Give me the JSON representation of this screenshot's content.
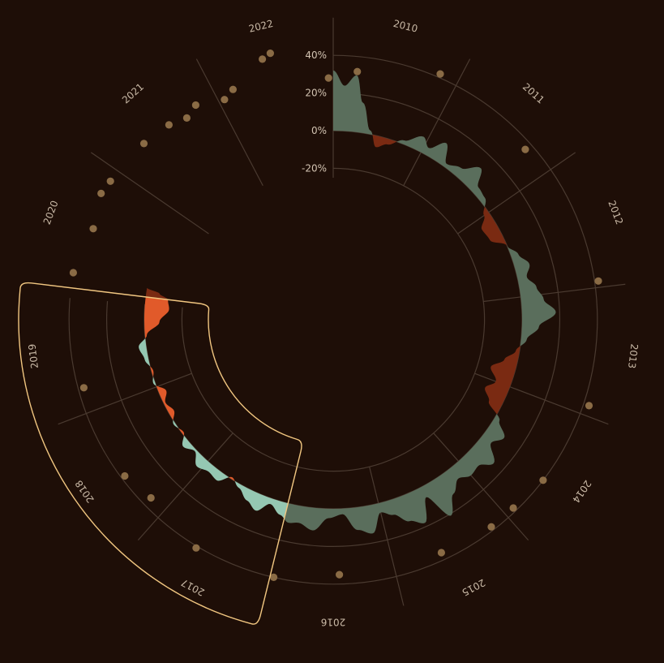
{
  "chart_data": {
    "type": "area",
    "layout": "radial",
    "title": "",
    "xlabel": "",
    "ylabel": "",
    "ylim": [
      -20,
      40
    ],
    "y_ticks": [
      "40%",
      "20%",
      "0%",
      "-20%"
    ],
    "x_years": [
      "2010",
      "2011",
      "2012",
      "2013",
      "2014",
      "2015",
      "2016",
      "2017",
      "2018",
      "2019",
      "2020",
      "2021",
      "2022"
    ],
    "highlight_range": [
      "2017",
      "2019"
    ],
    "colors": {
      "background": "#1e0e07",
      "positive": "#5a6e5c",
      "negative": "#7a2a12",
      "positive_highlight": "#95c7b2",
      "negative_highlight": "#e15a2a",
      "dots": "#8a6b45",
      "highlight_outline": "#f1c680"
    },
    "series": [
      {
        "values": [
          [
            2010.0,
            32
          ],
          [
            2010.1,
            24
          ],
          [
            2010.2,
            30
          ],
          [
            2010.28,
            16
          ],
          [
            2010.4,
            2
          ],
          [
            2010.5,
            -6
          ],
          [
            2010.62,
            -3
          ],
          [
            2010.78,
            2
          ],
          [
            2010.95,
            8
          ],
          [
            2011.05,
            4
          ],
          [
            2011.18,
            11
          ],
          [
            2011.3,
            2
          ],
          [
            2011.45,
            5
          ],
          [
            2011.6,
            12
          ],
          [
            2011.72,
            4
          ],
          [
            2011.85,
            3
          ],
          [
            2012.0,
            -3
          ],
          [
            2012.12,
            -8
          ],
          [
            2012.28,
            -7
          ],
          [
            2012.42,
            0
          ],
          [
            2012.55,
            4
          ],
          [
            2012.68,
            8
          ],
          [
            2012.8,
            5
          ],
          [
            2012.92,
            9
          ],
          [
            2013.05,
            12
          ],
          [
            2013.18,
            18
          ],
          [
            2013.32,
            9
          ],
          [
            2013.46,
            3
          ],
          [
            2013.6,
            -2
          ],
          [
            2013.72,
            -7
          ],
          [
            2013.85,
            -13
          ],
          [
            2014.0,
            -8
          ],
          [
            2014.12,
            -12
          ],
          [
            2014.25,
            -7
          ],
          [
            2014.38,
            3
          ],
          [
            2014.5,
            10
          ],
          [
            2014.62,
            6
          ],
          [
            2014.76,
            14
          ],
          [
            2014.88,
            9
          ],
          [
            2015.0,
            10
          ],
          [
            2015.12,
            7
          ],
          [
            2015.25,
            12
          ],
          [
            2015.38,
            21
          ],
          [
            2015.5,
            6
          ],
          [
            2015.62,
            18
          ],
          [
            2015.75,
            14
          ],
          [
            2015.88,
            8
          ],
          [
            2016.0,
            5
          ],
          [
            2016.12,
            15
          ],
          [
            2016.26,
            12
          ],
          [
            2016.4,
            3
          ],
          [
            2016.55,
            5
          ],
          [
            2016.7,
            12
          ],
          [
            2016.85,
            9
          ],
          [
            2016.95,
            10
          ],
          [
            2017.05,
            7
          ],
          [
            2017.18,
            3
          ],
          [
            2017.3,
            9
          ],
          [
            2017.42,
            6
          ],
          [
            2017.56,
            2
          ],
          [
            2017.68,
            -1
          ],
          [
            2017.8,
            5
          ],
          [
            2017.92,
            4
          ],
          [
            2018.05,
            6
          ],
          [
            2018.18,
            1
          ],
          [
            2018.3,
            4
          ],
          [
            2018.42,
            -1
          ],
          [
            2018.55,
            1
          ],
          [
            2018.68,
            -3
          ],
          [
            2018.8,
            -1
          ],
          [
            2018.92,
            -4
          ],
          [
            2019.05,
            1
          ],
          [
            2019.18,
            -1
          ],
          [
            2019.32,
            2
          ],
          [
            2019.46,
            4
          ],
          [
            2019.58,
            -1
          ],
          [
            2019.72,
            -8
          ],
          [
            2019.88,
            -13
          ],
          [
            2020.0,
            -12
          ],
          [
            2020.06,
            -7
          ],
          [
            2020.1,
            0
          ]
        ]
      }
    ],
    "dots": [
      [
        2009.96,
        28
      ],
      [
        2010.2,
        32
      ],
      [
        2010.85,
        42
      ],
      [
        2011.75,
        36
      ],
      [
        2012.95,
        42
      ],
      [
        2013.92,
        43
      ],
      [
        2014.6,
        40
      ],
      [
        2014.92,
        38
      ],
      [
        2015.15,
        38
      ],
      [
        2015.6,
        36
      ],
      [
        2016.45,
        35
      ],
      [
        2016.97,
        40
      ],
      [
        2017.62,
        41
      ],
      [
        2018.15,
        35
      ],
      [
        2018.42,
        38
      ],
      [
        2019.2,
        37
      ],
      [
        2020.12,
        40
      ],
      [
        2020.5,
        36
      ],
      [
        2020.78,
        40
      ],
      [
        2020.9,
        39
      ],
      [
        2021.3,
        37
      ],
      [
        2021.55,
        35
      ],
      [
        2021.7,
        32
      ],
      [
        2021.82,
        35
      ],
      [
        2022.05,
        30
      ],
      [
        2022.15,
        33
      ],
      [
        2022.45,
        43
      ],
      [
        2022.52,
        45
      ]
    ]
  }
}
